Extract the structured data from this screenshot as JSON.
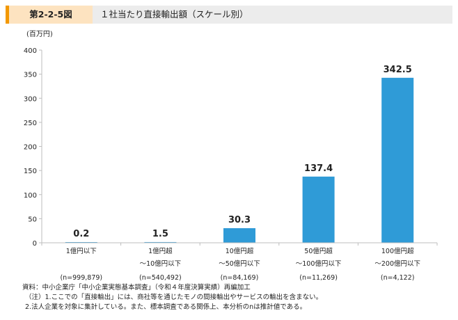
{
  "header": {
    "figure_number": "第2-2-5図",
    "title": "１社当たり直接輸出額（スケール別）"
  },
  "notes": {
    "source": "資料：中小企業庁「中小企業実態基本調査」（令和４年度決算実績）再編加工",
    "note1": "（注）1.ここでの「直接輸出」には、商社等を通じたモノの間接輸出やサービスの輸出を含まない。",
    "note2": "2.法人企業を対象に集計している。また、標本調査である関係上、本分析のnは推計値である。"
  },
  "chart_data": {
    "type": "bar",
    "unit_label": "(百万円)",
    "ylim": [
      0,
      400
    ],
    "yticks": [
      0,
      50,
      100,
      150,
      200,
      250,
      300,
      350,
      400
    ],
    "categories": [
      [
        "1億円以下",
        "",
        "(n=999,879)"
      ],
      [
        "1億円超",
        "～10億円以下",
        "(n=540,492)"
      ],
      [
        "10億円超",
        "～50億円以下",
        "(n=84,169)"
      ],
      [
        "50億円超",
        "～100億円以下",
        "(n=11,269)"
      ],
      [
        "100億円超",
        "～200億円以下",
        "(n=4,122)"
      ]
    ],
    "values": [
      0.2,
      1.5,
      30.3,
      137.4,
      342.5
    ],
    "value_labels": [
      "0.2",
      "1.5",
      "30.3",
      "137.4",
      "342.5"
    ],
    "bar_color": "#2f9bd7",
    "grid": false
  }
}
